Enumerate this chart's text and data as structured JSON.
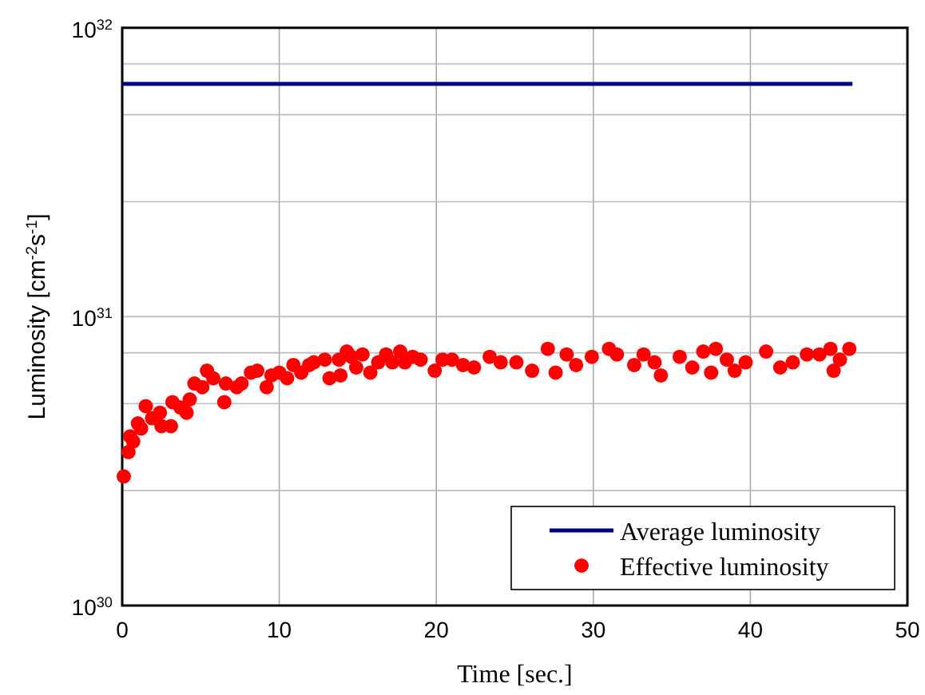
{
  "chart_data": {
    "type": "scatter",
    "xlabel": "Time [sec.]",
    "ylabel": "Luminosity [cm$^{-2}$s$^{-1}$]",
    "xlim": [
      0,
      50
    ],
    "xticks": [
      0,
      10,
      20,
      30,
      40,
      50
    ],
    "ylim": [
      1e+30,
      1e+32
    ],
    "log": true,
    "yticks": [
      {
        "value": 1e+30,
        "label": "10$^{30}$"
      },
      {
        "value": 2.5e+30,
        "label": null
      },
      {
        "value": 5e+30,
        "label": null
      },
      {
        "value": 7.5e+30,
        "label": null
      },
      {
        "value": 1e+31,
        "label": "10$^{31}$"
      },
      {
        "value": 2.5e+31,
        "label": null
      },
      {
        "value": 5e+31,
        "label": null
      },
      {
        "value": 7.5e+31,
        "label": null
      },
      {
        "value": 1e+32,
        "label": "10$^{32}$"
      }
    ],
    "grid": true,
    "legend": "bottom right",
    "series": [
      {
        "name": "Average luminosity",
        "type": "line",
        "color": "#000080",
        "marker": "none",
        "line_style": "solid",
        "x": [
          0,
          6,
          46.5
        ],
        "values": [
          6.4e+31,
          6.4e+31,
          6.4e+31
        ]
      },
      {
        "name": "Effective luminosity",
        "color": "#ff0000",
        "marker": "circle",
        "x": [
          0.1,
          0.4,
          0.5,
          0.7,
          1.0,
          1.2,
          1.5,
          1.9,
          2.4,
          2.5,
          3.1,
          3.2,
          3.7,
          4.1,
          4.3,
          4.6,
          5.1,
          5.4,
          5.8,
          6.5,
          6.6,
          7.3,
          7.6,
          8.2,
          8.6,
          9.2,
          9.5,
          10.0,
          10.5,
          10.9,
          11.4,
          11.9,
          12.2,
          12.9,
          13.2,
          13.8,
          13.9,
          14.3,
          14.6,
          14.9,
          15.3,
          15.8,
          16.3,
          16.8,
          17.2,
          17.7,
          18.0,
          18.5,
          19.0,
          19.9,
          20.4,
          21.0,
          21.7,
          22.4,
          23.4,
          24.1,
          25.1,
          26.1,
          27.1,
          27.6,
          28.3,
          28.9,
          29.9,
          31.0,
          31.5,
          32.6,
          33.2,
          33.9,
          34.3,
          35.5,
          36.3,
          37.0,
          37.5,
          37.8,
          38.5,
          39.0,
          39.7,
          41.0,
          41.9,
          42.7,
          43.6,
          44.4,
          45.1,
          45.3,
          45.7,
          46.3
        ],
        "values": [
          2.8e+30,
          3.4e+30,
          3.85e+30,
          3.7e+30,
          4.27e+30,
          4.1e+30,
          4.9e+30,
          4.45e+30,
          4.65e+30,
          4.18e+30,
          4.18e+30,
          5.06e+30,
          4.85e+30,
          4.65e+30,
          5.17e+30,
          5.87e+30,
          5.7e+30,
          6.5e+30,
          6.12e+30,
          5.06e+30,
          5.87e+30,
          5.7e+30,
          5.87e+30,
          6.4e+30,
          6.5e+30,
          5.7e+30,
          6.26e+30,
          6.4e+30,
          6.12e+30,
          6.8e+30,
          6.4e+30,
          6.8e+30,
          6.95e+30,
          7.1e+30,
          6.12e+30,
          7.1e+30,
          6.26e+30,
          7.57e+30,
          7.26e+30,
          6.67e+30,
          7.4e+30,
          6.4e+30,
          6.95e+30,
          7.4e+30,
          6.95e+30,
          7.57e+30,
          6.95e+30,
          7.26e+30,
          7.1e+30,
          6.5e+30,
          7.1e+30,
          7.1e+30,
          6.8e+30,
          6.67e+30,
          7.26e+30,
          6.95e+30,
          6.95e+30,
          6.5e+30,
          7.74e+30,
          6.4e+30,
          7.4e+30,
          6.8e+30,
          7.26e+30,
          7.74e+30,
          7.4e+30,
          6.8e+30,
          7.4e+30,
          6.95e+30,
          6.26e+30,
          7.26e+30,
          6.67e+30,
          7.57e+30,
          6.4e+30,
          7.74e+30,
          7.1e+30,
          6.5e+30,
          6.95e+30,
          7.57e+30,
          6.67e+30,
          6.95e+30,
          7.4e+30,
          7.4e+30,
          7.74e+30,
          6.5e+30,
          7.1e+30,
          7.74e+30
        ]
      }
    ]
  }
}
